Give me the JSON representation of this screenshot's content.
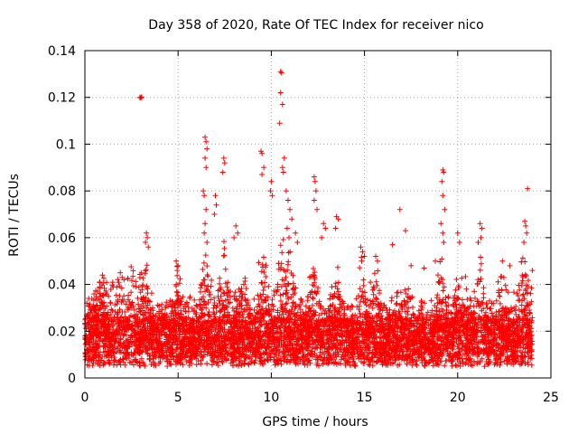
{
  "chart_data": {
    "type": "scatter",
    "title": "Day 358 of 2020, Rate Of TEC Index for receiver nico",
    "xlabel": "GPS time / hours",
    "ylabel": "ROTI / TECUs",
    "xlim": [
      0,
      25
    ],
    "ylim": [
      0,
      0.14
    ],
    "x_ticks": [
      0,
      5,
      10,
      15,
      20,
      25
    ],
    "x_tick_labels": [
      "0",
      "5",
      "10",
      "15",
      "20",
      "25"
    ],
    "y_ticks": [
      0,
      0.02,
      0.04,
      0.06,
      0.08,
      0.1,
      0.12,
      0.14
    ],
    "y_tick_labels": [
      "0",
      "0.02",
      "0.04",
      "0.06",
      "0.08",
      "0.1",
      "0.12",
      "0.14"
    ],
    "grid": true,
    "marker": "+",
    "marker_color": "#ff0000",
    "series": [
      {
        "name": "ROTI",
        "points": [
          [
            2.95,
            0.12
          ],
          [
            3.05,
            0.1202
          ],
          [
            3.0,
            0.1198
          ],
          [
            10.5,
            0.131
          ],
          [
            10.55,
            0.1305
          ],
          [
            10.5,
            0.122
          ],
          [
            10.6,
            0.117
          ],
          [
            10.45,
            0.109
          ],
          [
            6.45,
            0.103
          ],
          [
            6.5,
            0.101
          ],
          [
            6.55,
            0.098
          ],
          [
            6.45,
            0.094
          ],
          [
            6.5,
            0.09
          ],
          [
            9.45,
            0.097
          ],
          [
            9.5,
            0.096
          ],
          [
            9.6,
            0.09
          ],
          [
            9.5,
            0.087
          ],
          [
            7.45,
            0.094
          ],
          [
            7.5,
            0.092
          ],
          [
            7.4,
            0.088
          ],
          [
            10.7,
            0.094
          ],
          [
            10.6,
            0.09
          ],
          [
            10.65,
            0.088
          ],
          [
            10.0,
            0.084
          ],
          [
            9.95,
            0.08
          ],
          [
            10.05,
            0.078
          ],
          [
            12.3,
            0.086
          ],
          [
            12.35,
            0.084
          ],
          [
            12.4,
            0.08
          ],
          [
            12.3,
            0.076
          ],
          [
            12.45,
            0.072
          ],
          [
            19.2,
            0.089
          ],
          [
            19.25,
            0.088
          ],
          [
            19.15,
            0.084
          ],
          [
            19.2,
            0.078
          ],
          [
            19.3,
            0.072
          ],
          [
            19.1,
            0.066
          ],
          [
            19.2,
            0.062
          ],
          [
            19.25,
            0.058
          ],
          [
            23.75,
            0.081
          ],
          [
            6.35,
            0.08
          ],
          [
            6.4,
            0.078
          ],
          [
            6.5,
            0.072
          ],
          [
            6.45,
            0.066
          ],
          [
            6.4,
            0.062
          ],
          [
            6.55,
            0.058
          ],
          [
            7.0,
            0.078
          ],
          [
            7.05,
            0.074
          ],
          [
            6.95,
            0.07
          ],
          [
            8.1,
            0.065
          ],
          [
            8.2,
            0.062
          ],
          [
            8.0,
            0.06
          ],
          [
            10.8,
            0.08
          ],
          [
            10.9,
            0.076
          ],
          [
            11.0,
            0.072
          ],
          [
            11.1,
            0.068
          ],
          [
            10.85,
            0.064
          ],
          [
            10.95,
            0.06
          ],
          [
            11.3,
            0.062
          ],
          [
            11.4,
            0.058
          ],
          [
            12.8,
            0.066
          ],
          [
            12.9,
            0.064
          ],
          [
            12.7,
            0.06
          ],
          [
            13.5,
            0.069
          ],
          [
            13.6,
            0.068
          ],
          [
            13.45,
            0.064
          ],
          [
            16.9,
            0.072
          ],
          [
            17.2,
            0.063
          ],
          [
            16.5,
            0.057
          ],
          [
            21.2,
            0.066
          ],
          [
            21.3,
            0.064
          ],
          [
            21.25,
            0.06
          ],
          [
            21.1,
            0.058
          ],
          [
            20.0,
            0.062
          ],
          [
            20.1,
            0.058
          ],
          [
            23.6,
            0.067
          ],
          [
            23.65,
            0.065
          ],
          [
            23.7,
            0.062
          ],
          [
            23.55,
            0.058
          ],
          [
            3.3,
            0.062
          ],
          [
            3.35,
            0.06
          ],
          [
            3.25,
            0.058
          ],
          [
            3.4,
            0.056
          ],
          [
            4.9,
            0.05
          ],
          [
            5.0,
            0.048
          ],
          [
            4.95,
            0.046
          ],
          [
            1.9,
            0.045
          ],
          [
            2.0,
            0.043
          ],
          [
            2.1,
            0.042
          ],
          [
            14.8,
            0.056
          ],
          [
            14.9,
            0.054
          ],
          [
            15.0,
            0.052
          ],
          [
            14.85,
            0.05
          ],
          [
            15.6,
            0.052
          ],
          [
            15.7,
            0.05
          ],
          [
            17.5,
            0.048
          ],
          [
            18.2,
            0.047
          ],
          [
            18.8,
            0.05
          ],
          [
            22.4,
            0.05
          ],
          [
            22.8,
            0.048
          ],
          [
            24.0,
            0.046
          ],
          [
            0.2,
            0.034
          ],
          [
            0.1,
            0.032
          ],
          [
            0.4,
            0.03
          ]
        ]
      }
    ],
    "dense_band": {
      "description": "dense background scatter of ROTI values",
      "typical_min": 0.005,
      "typical_max": 0.025,
      "point_count": 6000
    }
  }
}
